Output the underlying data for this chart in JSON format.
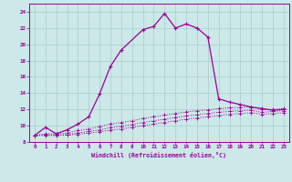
{
  "background_color": "#cce8e8",
  "grid_color": "#aacccc",
  "line_color": "#990099",
  "xlabel": "Windchill (Refroidissement éolien,°C)",
  "xlim": [
    -0.5,
    23.5
  ],
  "ylim": [
    8,
    25
  ],
  "xticks": [
    0,
    1,
    2,
    3,
    4,
    5,
    6,
    7,
    8,
    9,
    10,
    11,
    12,
    13,
    14,
    15,
    16,
    17,
    18,
    19,
    20,
    21,
    22,
    23
  ],
  "yticks": [
    8,
    10,
    12,
    14,
    16,
    18,
    20,
    22,
    24
  ],
  "curve1_x": [
    0,
    1,
    2,
    3,
    4,
    5,
    6,
    7,
    8,
    10,
    11,
    12,
    13,
    14,
    15,
    16,
    17,
    18,
    19,
    20,
    21,
    22,
    23
  ],
  "curve1_y": [
    8.8,
    9.8,
    9.0,
    9.5,
    10.2,
    11.1,
    13.9,
    17.3,
    19.3,
    21.8,
    22.2,
    23.8,
    22.0,
    22.5,
    22.0,
    20.9,
    13.3,
    12.9,
    12.6,
    12.3,
    12.1,
    11.9,
    12.0
  ],
  "curve2_x": [
    0,
    1,
    2,
    3,
    4,
    5,
    6,
    7,
    8,
    9,
    10,
    11,
    12,
    13,
    14,
    15,
    16,
    17,
    18,
    19,
    20,
    21,
    22,
    23
  ],
  "curve2_y": [
    8.8,
    9.0,
    9.0,
    9.1,
    9.4,
    9.6,
    9.9,
    10.2,
    10.4,
    10.6,
    10.9,
    11.1,
    11.3,
    11.5,
    11.7,
    11.85,
    11.95,
    12.1,
    12.2,
    12.25,
    12.3,
    12.0,
    12.0,
    12.1
  ],
  "curve3_x": [
    0,
    1,
    2,
    3,
    4,
    5,
    6,
    7,
    8,
    9,
    10,
    11,
    12,
    13,
    14,
    15,
    16,
    17,
    18,
    19,
    20,
    21,
    22,
    23
  ],
  "curve3_y": [
    8.8,
    8.9,
    8.85,
    8.9,
    9.1,
    9.3,
    9.5,
    9.75,
    9.95,
    10.15,
    10.4,
    10.6,
    10.8,
    11.0,
    11.2,
    11.35,
    11.5,
    11.65,
    11.75,
    11.85,
    11.9,
    11.65,
    11.75,
    11.85
  ],
  "curve4_x": [
    0,
    1,
    2,
    3,
    4,
    5,
    6,
    7,
    8,
    9,
    10,
    11,
    12,
    13,
    14,
    15,
    16,
    17,
    18,
    19,
    20,
    21,
    22,
    23
  ],
  "curve4_y": [
    8.8,
    8.8,
    8.8,
    8.85,
    8.95,
    9.1,
    9.25,
    9.45,
    9.6,
    9.8,
    10.0,
    10.2,
    10.4,
    10.6,
    10.8,
    10.95,
    11.1,
    11.25,
    11.4,
    11.5,
    11.6,
    11.4,
    11.5,
    11.6
  ]
}
